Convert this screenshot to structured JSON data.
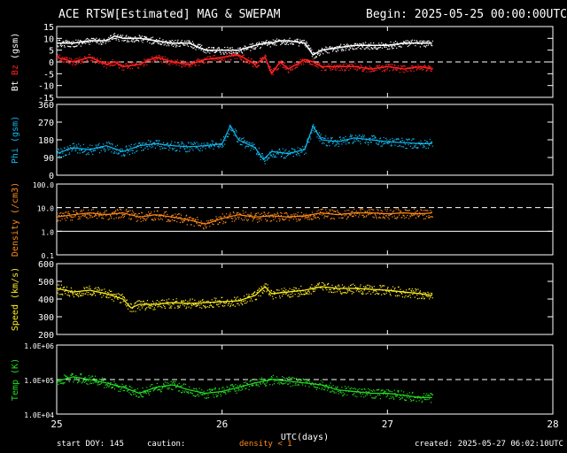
{
  "header": {
    "title": "ACE RTSW[Estimated] MAG & SWEPAM",
    "begin": "Begin: 2025-05-25 00:00:00UTC"
  },
  "footer": {
    "start_doy": "start DOY: 145",
    "caution_label": "caution:",
    "caution_text": "density < 1",
    "created": "created: 2025-05-27 06:02:10UTC"
  },
  "colors": {
    "background": "#000000",
    "axes": "#ffffff",
    "bt": "#ffffff",
    "bz": "#ff2020",
    "phi": "#10b8f0",
    "density": "#ff8c1a",
    "speed": "#ffee22",
    "temp": "#22dd22"
  },
  "chart_data": [
    {
      "type": "line",
      "panel": "mag",
      "ylabel_parts": [
        "Bt",
        "Bz",
        "(gsm)"
      ],
      "ylim": [
        -15,
        15
      ],
      "yticks": [
        -15,
        -10,
        -5,
        0,
        5,
        10,
        15
      ],
      "ytick_labels": [
        "-15",
        "-10",
        "-5",
        "0",
        "5",
        "10",
        "15"
      ],
      "dashed_lines": [
        0
      ],
      "series": [
        {
          "name": "Bt",
          "x": [
            0,
            0.1,
            0.2,
            0.3,
            0.35,
            0.4,
            0.5,
            0.6,
            0.7,
            0.8,
            0.9,
            1.0,
            1.1,
            1.15,
            1.2,
            1.26,
            1.3,
            1.35,
            1.4,
            1.5,
            1.55,
            1.6,
            1.7,
            1.8,
            1.9,
            2.0,
            2.1,
            2.2,
            2.27
          ],
          "values": [
            8,
            8,
            9,
            9,
            11,
            10,
            10,
            9,
            8,
            8,
            5,
            5,
            5,
            6,
            7,
            8,
            8,
            9,
            9,
            8,
            3,
            5,
            6,
            7,
            7,
            7,
            8,
            8,
            8
          ]
        },
        {
          "name": "Bz",
          "x": [
            0,
            0.1,
            0.2,
            0.3,
            0.35,
            0.4,
            0.5,
            0.6,
            0.7,
            0.8,
            0.9,
            1.0,
            1.1,
            1.15,
            1.2,
            1.26,
            1.3,
            1.35,
            1.4,
            1.5,
            1.55,
            1.6,
            1.7,
            1.8,
            1.9,
            2.0,
            2.1,
            2.2,
            2.27
          ],
          "values": [
            2,
            0,
            2,
            -1,
            0,
            -2,
            -1,
            2,
            0,
            -1,
            1,
            2,
            3,
            1,
            -1,
            2,
            -5,
            0,
            -3,
            1,
            0,
            -2,
            -2,
            -2,
            -3,
            -2,
            -3,
            -2,
            -3
          ]
        }
      ]
    },
    {
      "type": "scatter",
      "panel": "phi",
      "ylabel": "Phi (gsm)",
      "ylim": [
        0,
        360
      ],
      "yticks": [
        0,
        90,
        180,
        270,
        360
      ],
      "ytick_labels": [
        "0",
        "90",
        "180",
        "270",
        "360"
      ],
      "series": [
        {
          "name": "Phi",
          "x": [
            0,
            0.1,
            0.2,
            0.3,
            0.4,
            0.5,
            0.6,
            0.7,
            0.8,
            0.9,
            1.0,
            1.05,
            1.1,
            1.2,
            1.25,
            1.3,
            1.4,
            1.5,
            1.55,
            1.6,
            1.7,
            1.8,
            1.9,
            2.0,
            2.1,
            2.2,
            2.27
          ],
          "values": [
            110,
            140,
            130,
            150,
            120,
            150,
            160,
            150,
            145,
            150,
            160,
            250,
            180,
            140,
            80,
            120,
            110,
            130,
            250,
            180,
            170,
            190,
            180,
            170,
            165,
            160,
            160
          ]
        }
      ]
    },
    {
      "type": "scatter",
      "panel": "density",
      "ylabel": "Density (/cm3)",
      "yscale": "log",
      "ylim": [
        0.1,
        100
      ],
      "yticks": [
        0.1,
        1,
        10,
        100
      ],
      "ytick_labels": [
        "0.1",
        "1.0",
        "10.0",
        "100.0"
      ],
      "dashed_lines": [
        10
      ],
      "solid_lines": [
        1
      ],
      "series": [
        {
          "name": "Density",
          "x": [
            0,
            0.1,
            0.2,
            0.3,
            0.4,
            0.5,
            0.6,
            0.7,
            0.8,
            0.9,
            1.0,
            1.1,
            1.2,
            1.3,
            1.4,
            1.5,
            1.6,
            1.7,
            1.8,
            1.9,
            2.0,
            2.1,
            2.2,
            2.27
          ],
          "values": [
            4,
            5,
            6,
            5,
            6,
            4,
            5,
            4,
            3,
            2,
            3.5,
            5,
            4,
            4.5,
            4,
            4.5,
            6,
            5,
            6,
            6,
            5.5,
            6,
            5.5,
            6
          ]
        }
      ]
    },
    {
      "type": "scatter",
      "panel": "speed",
      "ylabel": "Speed (km/s)",
      "ylim": [
        200,
        600
      ],
      "yticks": [
        200,
        300,
        400,
        500,
        600
      ],
      "ytick_labels": [
        "200",
        "300",
        "400",
        "500",
        "600"
      ],
      "series": [
        {
          "name": "Speed",
          "x": [
            0,
            0.1,
            0.2,
            0.3,
            0.4,
            0.45,
            0.5,
            0.6,
            0.7,
            0.8,
            0.9,
            1.0,
            1.1,
            1.2,
            1.26,
            1.3,
            1.4,
            1.5,
            1.6,
            1.7,
            1.8,
            1.9,
            2.0,
            2.1,
            2.2,
            2.27
          ],
          "values": [
            460,
            440,
            450,
            430,
            400,
            350,
            370,
            370,
            380,
            375,
            380,
            385,
            390,
            420,
            470,
            430,
            440,
            450,
            470,
            460,
            460,
            455,
            450,
            440,
            430,
            420
          ]
        }
      ]
    },
    {
      "type": "scatter",
      "panel": "temp",
      "ylabel": "Temp (K)",
      "yscale": "log",
      "ylim": [
        10000,
        1000000
      ],
      "yticks": [
        10000,
        100000,
        1000000
      ],
      "ytick_labels": [
        "1.0E+04",
        "1.0E+05",
        "1.0E+06"
      ],
      "dashed_lines": [
        100000
      ],
      "series": [
        {
          "name": "Temp",
          "x": [
            0,
            0.1,
            0.2,
            0.3,
            0.4,
            0.5,
            0.6,
            0.7,
            0.8,
            0.9,
            1.0,
            1.1,
            1.2,
            1.3,
            1.4,
            1.5,
            1.6,
            1.7,
            1.8,
            1.9,
            2.0,
            2.1,
            2.2,
            2.27
          ],
          "values": [
            90000,
            120000,
            100000,
            80000,
            60000,
            40000,
            60000,
            70000,
            50000,
            40000,
            45000,
            60000,
            80000,
            100000,
            90000,
            80000,
            70000,
            50000,
            45000,
            40000,
            40000,
            35000,
            30000,
            30000
          ]
        }
      ]
    },
    {
      "type": "axis",
      "xlabel": "UTC(days)",
      "xlim": [
        0,
        3
      ],
      "xticks": [
        0,
        1,
        2,
        3
      ],
      "xtick_labels": [
        "25",
        "26",
        "27",
        "28"
      ]
    }
  ]
}
